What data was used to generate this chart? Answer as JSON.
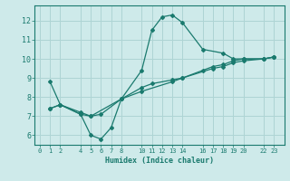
{
  "xlabel": "Humidex (Indice chaleur)",
  "bg_color": "#ceeaea",
  "line_color": "#1a7a6e",
  "grid_color": "#aed4d4",
  "xticks": [
    0,
    1,
    2,
    4,
    5,
    6,
    7,
    8,
    10,
    11,
    12,
    13,
    14,
    16,
    17,
    18,
    19,
    20,
    22,
    23
  ],
  "yticks": [
    6,
    7,
    8,
    9,
    10,
    11,
    12
  ],
  "xlim": [
    -0.5,
    24.0
  ],
  "ylim": [
    5.5,
    12.8
  ],
  "lines": [
    {
      "x": [
        1,
        2,
        4,
        5,
        6,
        7,
        8,
        10,
        11,
        12,
        13,
        14,
        16,
        18,
        19,
        20,
        22,
        23
      ],
      "y": [
        8.8,
        7.6,
        7.1,
        6.0,
        5.8,
        6.4,
        7.9,
        9.4,
        11.5,
        12.2,
        12.3,
        11.9,
        10.5,
        10.3,
        10.0,
        10.0,
        10.0,
        10.1
      ]
    },
    {
      "x": [
        1,
        2,
        4,
        5,
        6,
        8,
        10,
        13,
        14,
        17,
        18,
        19,
        20,
        22,
        23
      ],
      "y": [
        7.4,
        7.6,
        7.2,
        7.0,
        7.1,
        7.9,
        8.3,
        8.8,
        9.0,
        9.5,
        9.6,
        9.8,
        9.9,
        10.0,
        10.1
      ]
    },
    {
      "x": [
        1,
        2,
        4,
        5,
        8,
        10,
        11,
        13,
        14,
        16,
        17,
        18,
        19,
        20,
        22,
        23
      ],
      "y": [
        7.4,
        7.6,
        7.1,
        7.0,
        7.9,
        8.5,
        8.7,
        8.9,
        9.0,
        9.4,
        9.6,
        9.7,
        9.9,
        10.0,
        10.0,
        10.1
      ]
    }
  ],
  "figsize": [
    3.2,
    2.0
  ],
  "dpi": 100
}
